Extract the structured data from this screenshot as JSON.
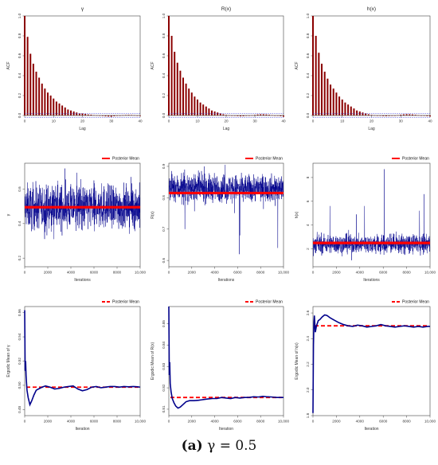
{
  "caption": {
    "label": "(a)",
    "text": "γ = 0.5"
  },
  "colors": {
    "acf_bar": "#8b0000",
    "trace": "#00008b",
    "mean": "#ff0000",
    "ref": "#2b2bd6"
  },
  "chart_data": [
    {
      "type": "bar",
      "kind": "acf",
      "title": "γ",
      "xlabel": "Lag",
      "ylabel": "ACF",
      "xlim": [
        0,
        40
      ],
      "ylim": [
        0,
        1
      ],
      "xticks": [
        "0",
        "10",
        "20",
        "30",
        "40"
      ],
      "yticks": [
        "0.0",
        "0.2",
        "0.4",
        "0.6",
        "0.8",
        "1.0"
      ],
      "conf_band": [
        -0.02,
        0.02
      ],
      "lags": [
        0,
        1,
        2,
        3,
        4,
        5,
        6,
        7,
        8,
        9,
        10,
        11,
        12,
        13,
        14,
        15,
        16,
        17,
        18,
        19,
        20,
        21,
        22,
        23,
        24,
        25,
        26,
        27,
        28,
        29,
        30,
        31,
        32,
        33,
        34,
        35,
        36,
        37,
        38,
        39,
        40
      ],
      "values": [
        1.0,
        0.79,
        0.62,
        0.52,
        0.44,
        0.38,
        0.32,
        0.27,
        0.23,
        0.2,
        0.17,
        0.14,
        0.12,
        0.1,
        0.08,
        0.06,
        0.05,
        0.04,
        0.03,
        0.02,
        0.02,
        0.015,
        0.01,
        0.008,
        0.004,
        0.001,
        -0.003,
        -0.006,
        -0.009,
        -0.011,
        -0.012,
        -0.008,
        -0.004,
        0.0,
        0.003,
        0.005,
        0.006,
        0.005,
        0.003,
        0.0,
        -0.005
      ]
    },
    {
      "type": "bar",
      "kind": "acf",
      "title": "R(x)",
      "xlabel": "Lag",
      "ylabel": "ACF",
      "xlim": [
        0,
        40
      ],
      "ylim": [
        0,
        1
      ],
      "xticks": [
        "0",
        "10",
        "20",
        "30",
        "40"
      ],
      "yticks": [
        "0.0",
        "0.2",
        "0.4",
        "0.6",
        "0.8",
        "1.0"
      ],
      "conf_band": [
        -0.02,
        0.02
      ],
      "lags": [
        0,
        1,
        2,
        3,
        4,
        5,
        6,
        7,
        8,
        9,
        10,
        11,
        12,
        13,
        14,
        15,
        16,
        17,
        18,
        19,
        20,
        21,
        22,
        23,
        24,
        25,
        26,
        27,
        28,
        29,
        30,
        31,
        32,
        33,
        34,
        35,
        36,
        37,
        38,
        39,
        40
      ],
      "values": [
        1.0,
        0.8,
        0.64,
        0.53,
        0.45,
        0.38,
        0.32,
        0.27,
        0.23,
        0.19,
        0.16,
        0.13,
        0.11,
        0.09,
        0.07,
        0.05,
        0.04,
        0.03,
        0.02,
        0.012,
        0.006,
        0.003,
        0.0,
        -0.004,
        -0.007,
        -0.009,
        -0.008,
        -0.005,
        -0.002,
        0.002,
        0.006,
        0.01,
        0.012,
        0.012,
        0.01,
        0.007,
        0.004,
        0.0,
        -0.004,
        -0.008,
        -0.012
      ]
    },
    {
      "type": "bar",
      "kind": "acf",
      "title": "h(x)",
      "xlabel": "Lag",
      "ylabel": "ACF",
      "xlim": [
        0,
        40
      ],
      "ylim": [
        0,
        1
      ],
      "xticks": [
        "0",
        "10",
        "20",
        "30",
        "40"
      ],
      "yticks": [
        "0.0",
        "0.2",
        "0.4",
        "0.6",
        "0.8",
        "1.0"
      ],
      "conf_band": [
        -0.02,
        0.02
      ],
      "lags": [
        0,
        1,
        2,
        3,
        4,
        5,
        6,
        7,
        8,
        9,
        10,
        11,
        12,
        13,
        14,
        15,
        16,
        17,
        18,
        19,
        20,
        21,
        22,
        23,
        24,
        25,
        26,
        27,
        28,
        29,
        30,
        31,
        32,
        33,
        34,
        35,
        36,
        37,
        38,
        39,
        40
      ],
      "values": [
        1.0,
        0.8,
        0.63,
        0.52,
        0.44,
        0.37,
        0.31,
        0.27,
        0.23,
        0.19,
        0.16,
        0.13,
        0.11,
        0.09,
        0.07,
        0.05,
        0.04,
        0.03,
        0.02,
        0.012,
        0.006,
        0.002,
        -0.002,
        -0.005,
        -0.007,
        -0.008,
        -0.006,
        -0.003,
        0.0,
        0.004,
        0.008,
        0.011,
        0.013,
        0.012,
        0.01,
        0.007,
        0.003,
        0.0,
        -0.004,
        -0.007,
        -0.01
      ]
    },
    {
      "type": "line",
      "kind": "trace",
      "xlabel": "Iterations",
      "ylabel": "γ",
      "legend": "Posterior Mean",
      "legend_position": "top-right",
      "xlim": [
        0,
        10000
      ],
      "ylim": [
        0.15,
        0.75
      ],
      "xticks": [
        "0",
        "2000",
        "4000",
        "6000",
        "8000",
        "10,000"
      ],
      "yticks": [
        "0.2",
        "0.4",
        "0.6"
      ],
      "ytick_values": [
        0.2,
        0.4,
        0.6
      ],
      "mean": 0.495,
      "center": 0.495,
      "spread": 0.09,
      "min": 0.16,
      "max": 0.74,
      "spikes": []
    },
    {
      "type": "line",
      "kind": "trace",
      "xlabel": "Iterations",
      "ylabel": "R(x)",
      "legend": "Posterior Mean",
      "legend_position": "top-right",
      "xlim": [
        0,
        10000
      ],
      "ylim": [
        0.58,
        0.91
      ],
      "xticks": [
        "0",
        "2000",
        "4000",
        "6000",
        "8000",
        "10,000"
      ],
      "yticks": [
        "0.6",
        "0.7",
        "0.8",
        "0.9"
      ],
      "ytick_values": [
        0.6,
        0.7,
        0.8,
        0.9
      ],
      "mean": 0.815,
      "center": 0.83,
      "spread": 0.03,
      "min": 0.62,
      "max": 0.905,
      "spikes": [
        [
          6150,
          0.605
        ],
        [
          6200,
          0.68
        ],
        [
          9500,
          0.64
        ],
        [
          1400,
          0.7
        ]
      ]
    },
    {
      "type": "line",
      "kind": "trace",
      "xlabel": "Iterations",
      "ylabel": "h(x)",
      "legend": "Posterior Mean",
      "legend_position": "top-right",
      "xlim": [
        0,
        10000
      ],
      "ylim": [
        0.5,
        9.2
      ],
      "xticks": [
        "0",
        "2000",
        "4000",
        "6000",
        "8000",
        "10,000"
      ],
      "yticks": [
        "2",
        "4",
        "6",
        "8"
      ],
      "ytick_values": [
        2,
        4,
        6,
        8
      ],
      "mean": 2.5,
      "center": 2.4,
      "spread": 0.55,
      "min": 0.8,
      "max": 8.7,
      "spikes": [
        [
          6100,
          8.7
        ],
        [
          4400,
          5.6
        ],
        [
          1450,
          5.6
        ],
        [
          9500,
          6.6
        ],
        [
          9100,
          5.2
        ],
        [
          3700,
          4.9
        ]
      ]
    },
    {
      "type": "line",
      "kind": "ergodic",
      "xlabel": "Iteration",
      "ylabel": "Ergodic Mean of γ",
      "legend": "Posterior Mean",
      "legend_position": "top-right",
      "xlim": [
        0,
        10000
      ],
      "ylim": [
        0.475,
        0.565
      ],
      "xticks": [
        "0",
        "2000",
        "4000",
        "6000",
        "8000",
        "10,000"
      ],
      "yticks": [
        "0.48",
        "0.50",
        "0.52",
        "0.54",
        "0.56"
      ],
      "ytick_values": [
        0.48,
        0.5,
        0.52,
        0.54,
        0.56
      ],
      "mean": 0.4985,
      "x": [
        0,
        40,
        80,
        120,
        200,
        300,
        450,
        600,
        800,
        1000,
        1200,
        1500,
        1800,
        2200,
        2600,
        3000,
        3400,
        3800,
        4200,
        4600,
        5000,
        5400,
        5800,
        6200,
        6600,
        7000,
        7400,
        7800,
        8200,
        8600,
        9000,
        9400,
        9800,
        10000
      ],
      "y": [
        0.562,
        0.512,
        0.52,
        0.508,
        0.496,
        0.49,
        0.484,
        0.487,
        0.492,
        0.496,
        0.497,
        0.4985,
        0.4995,
        0.4985,
        0.497,
        0.4975,
        0.4985,
        0.499,
        0.4995,
        0.497,
        0.4955,
        0.4965,
        0.4985,
        0.499,
        0.498,
        0.4985,
        0.499,
        0.499,
        0.4985,
        0.499,
        0.4988,
        0.499,
        0.4988,
        0.4985
      ]
    },
    {
      "type": "line",
      "kind": "ergodic",
      "xlabel": "Iteration",
      "ylabel": "Ergodic Mean of R(x)",
      "legend": "Posterior Mean",
      "legend_position": "top-right",
      "xlim": [
        0,
        10000
      ],
      "ylim": [
        0.807,
        0.858
      ],
      "xticks": [
        "0",
        "2000",
        "4000",
        "6000",
        "8000",
        "10,000"
      ],
      "yticks": [
        "0.81",
        "0.82",
        "0.83",
        "0.84",
        "0.85"
      ],
      "ytick_values": [
        0.81,
        0.82,
        0.83,
        0.84,
        0.85
      ],
      "mean": 0.8155,
      "x": [
        0,
        40,
        80,
        120,
        200,
        300,
        450,
        600,
        800,
        1000,
        1200,
        1500,
        1800,
        2200,
        2600,
        3000,
        3400,
        3800,
        4200,
        4600,
        5000,
        5400,
        5800,
        6200,
        6600,
        7000,
        7400,
        7800,
        8200,
        8600,
        9000,
        9400,
        9800,
        10000
      ],
      "y": [
        0.858,
        0.826,
        0.832,
        0.822,
        0.818,
        0.815,
        0.813,
        0.8115,
        0.8105,
        0.811,
        0.812,
        0.8135,
        0.814,
        0.814,
        0.8142,
        0.8145,
        0.8148,
        0.815,
        0.815,
        0.8155,
        0.8152,
        0.815,
        0.8155,
        0.8152,
        0.8155,
        0.8155,
        0.8158,
        0.8157,
        0.816,
        0.8158,
        0.8157,
        0.8155,
        0.8155,
        0.8155
      ]
    },
    {
      "type": "line",
      "kind": "ergodic",
      "xlabel": "Iteration",
      "ylabel": "Ergodic Mean of h(x)",
      "legend": "Posterior Mean",
      "legend_position": "top-right",
      "xlim": [
        0,
        10000
      ],
      "ylim": [
        1.8,
        2.65
      ],
      "xticks": [
        "0",
        "2000",
        "4000",
        "6000",
        "8000",
        "10,000"
      ],
      "yticks": [
        "1.8",
        "2.0",
        "2.2",
        "2.4",
        "2.6"
      ],
      "ytick_values": [
        1.8,
        2.0,
        2.2,
        2.4,
        2.6
      ],
      "mean": 2.5,
      "x": [
        0,
        40,
        80,
        120,
        200,
        300,
        450,
        600,
        800,
        1000,
        1200,
        1500,
        1800,
        2200,
        2600,
        3000,
        3400,
        3800,
        4200,
        4600,
        5000,
        5400,
        5800,
        6200,
        6600,
        7000,
        7400,
        7800,
        8200,
        8600,
        9000,
        9400,
        9800,
        10000
      ],
      "y": [
        1.82,
        2.35,
        2.52,
        2.58,
        2.45,
        2.5,
        2.54,
        2.55,
        2.57,
        2.585,
        2.58,
        2.56,
        2.545,
        2.525,
        2.51,
        2.5,
        2.495,
        2.505,
        2.5,
        2.49,
        2.495,
        2.5,
        2.51,
        2.5,
        2.495,
        2.49,
        2.495,
        2.5,
        2.495,
        2.49,
        2.495,
        2.49,
        2.495,
        2.495
      ]
    }
  ]
}
